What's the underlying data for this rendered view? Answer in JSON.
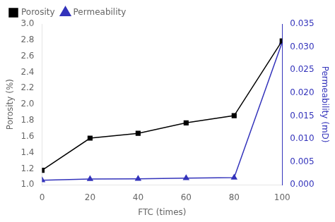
{
  "chart_data": {
    "type": "line",
    "xlabel": "FTC (times)",
    "ylabel": "Porosity (%)",
    "y2label": "Permeability (mD)",
    "x": [
      0,
      20,
      40,
      60,
      80,
      100
    ],
    "series": [
      {
        "name": "Porosity",
        "color": "#000000",
        "marker": "square",
        "line_style": "solid",
        "values": [
          1.18,
          1.58,
          1.64,
          1.77,
          1.86,
          2.79
        ]
      },
      {
        "name": "Permeability",
        "color": "#3333bb",
        "marker": "triangle",
        "line_style": "solid",
        "axis": "y2",
        "values": [
          0.001,
          0.00125,
          0.0013,
          0.00145,
          0.00155,
          0.031
        ]
      }
    ],
    "xlim": [
      0,
      100
    ],
    "xticks": [
      0,
      20,
      40,
      60,
      80,
      100
    ],
    "ylim": [
      1.0,
      3.0
    ],
    "yticks": [
      {
        "value": 1.0,
        "label": "1.0"
      },
      1.2,
      1.4,
      1.6,
      1.8,
      {
        "value": 2.0,
        "label": "2.0"
      },
      2.2,
      2.4,
      2.6,
      2.8,
      {
        "value": 3.0,
        "label": "3.0"
      }
    ],
    "y2lim": [
      0.0,
      0.035
    ],
    "y2ticks": [
      {
        "value": 0.0,
        "label": "0.000"
      },
      0.005,
      {
        "value": 0.01,
        "label": "0.010"
      },
      0.015,
      {
        "value": 0.02,
        "label": "0.020"
      },
      0.025,
      {
        "value": 0.03,
        "label": "0.030"
      },
      0.035
    ],
    "grid": false,
    "legend": "upper left"
  }
}
